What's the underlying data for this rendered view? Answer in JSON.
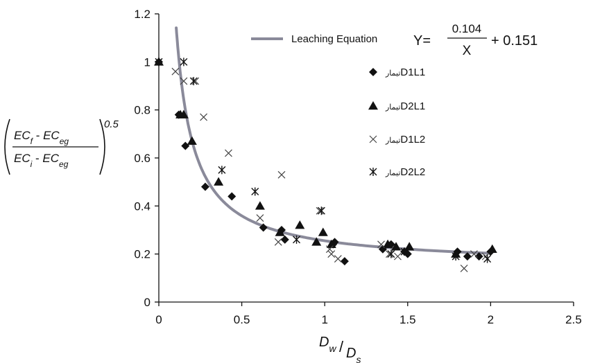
{
  "chart_data": {
    "type": "scatter",
    "xlabel": {
      "numerator": "D",
      "numerator_sub": "w",
      "denominator": "D",
      "denominator_sub": "s"
    },
    "ylabel": {
      "numerator": "EC",
      "numerator_sub1": "f",
      "numerator_minus": " - ",
      "numerator_term2": "EC",
      "numerator_sub2": "eg",
      "denominator": "EC",
      "denominator_sub1": "i",
      "denominator_minus": " - ",
      "denominator_term2": "EC",
      "denominator_sub2": "eg",
      "exponent": "0.5"
    },
    "xlim": [
      0,
      2.5
    ],
    "ylim": [
      0,
      1.2
    ],
    "xticks": [
      "0",
      "0.5",
      "1",
      "1.5",
      "2",
      "2.5"
    ],
    "yticks": [
      "0",
      "0.2",
      "0.4",
      "0.6",
      "0.8",
      "1",
      "1.2"
    ],
    "grid": false,
    "legend_position": "top-right",
    "curve": {
      "name": "Leaching Equation",
      "equation_prefix": "Y=",
      "equation_numerator": "0.104",
      "equation_denominator": "X",
      "equation_suffix": "+ 0.151",
      "a": 0.104,
      "b": 0.151,
      "x_start": 0.105,
      "x_end": 2.0,
      "color": "#8a8a9a"
    },
    "series": [
      {
        "name": "تیمار D1L1",
        "label_prefix": "تیمار",
        "label_code": "D1L1",
        "marker": "diamond",
        "points": [
          [
            0,
            1.0
          ],
          [
            0.12,
            0.78
          ],
          [
            0.16,
            0.65
          ],
          [
            0.28,
            0.48
          ],
          [
            0.44,
            0.44
          ],
          [
            0.63,
            0.31
          ],
          [
            0.74,
            0.3
          ],
          [
            0.76,
            0.26
          ],
          [
            1.05,
            0.24
          ],
          [
            1.06,
            0.25
          ],
          [
            1.12,
            0.17
          ],
          [
            1.35,
            0.22
          ],
          [
            1.4,
            0.24
          ],
          [
            1.48,
            0.21
          ],
          [
            1.5,
            0.2
          ],
          [
            1.8,
            0.21
          ],
          [
            1.86,
            0.19
          ],
          [
            1.93,
            0.19
          ],
          [
            2.0,
            0.21
          ]
        ]
      },
      {
        "name": "تیمار D2L1",
        "label_prefix": "تیمار",
        "label_code": "D2L1",
        "marker": "triangle",
        "points": [
          [
            0,
            1.0
          ],
          [
            0.13,
            0.78
          ],
          [
            0.15,
            0.78
          ],
          [
            0.2,
            0.67
          ],
          [
            0.36,
            0.5
          ],
          [
            0.61,
            0.4
          ],
          [
            0.73,
            0.29
          ],
          [
            0.85,
            0.32
          ],
          [
            0.95,
            0.25
          ],
          [
            0.99,
            0.29
          ],
          [
            1.04,
            0.24
          ],
          [
            1.38,
            0.24
          ],
          [
            1.43,
            0.23
          ],
          [
            1.51,
            0.23
          ],
          [
            1.79,
            0.2
          ],
          [
            2.01,
            0.22
          ]
        ]
      },
      {
        "name": "تیمار D1L2",
        "label_prefix": "تیمار",
        "label_code": "D1L2",
        "marker": "x",
        "points": [
          [
            0,
            1.0
          ],
          [
            0.1,
            0.96
          ],
          [
            0.15,
            0.92
          ],
          [
            0.22,
            0.92
          ],
          [
            0.27,
            0.77
          ],
          [
            0.42,
            0.62
          ],
          [
            0.61,
            0.35
          ],
          [
            0.72,
            0.25
          ],
          [
            0.74,
            0.53
          ],
          [
            0.97,
            0.38
          ],
          [
            1.03,
            0.22
          ],
          [
            1.04,
            0.2
          ],
          [
            1.08,
            0.18
          ],
          [
            1.34,
            0.24
          ],
          [
            1.39,
            0.2
          ],
          [
            1.44,
            0.19
          ],
          [
            1.84,
            0.14
          ],
          [
            1.9,
            0.2
          ],
          [
            1.97,
            0.19
          ]
        ]
      },
      {
        "name": "تیمار D2L2",
        "label_prefix": "تیمار",
        "label_code": "D2L2",
        "marker": "asterisk",
        "points": [
          [
            0,
            1.0
          ],
          [
            0.15,
            1.0
          ],
          [
            0.21,
            0.92
          ],
          [
            0.38,
            0.55
          ],
          [
            0.58,
            0.46
          ],
          [
            0.83,
            0.26
          ],
          [
            0.98,
            0.38
          ],
          [
            1.4,
            0.2
          ],
          [
            1.48,
            0.21
          ],
          [
            1.79,
            0.19
          ],
          [
            1.98,
            0.18
          ]
        ]
      }
    ]
  }
}
